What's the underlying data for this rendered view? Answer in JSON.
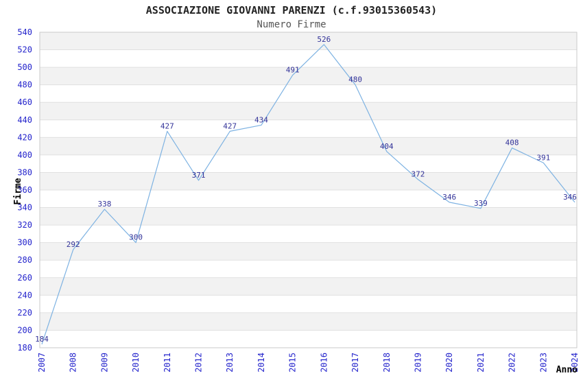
{
  "chart_data": {
    "type": "line",
    "title": "ASSOCIAZIONE GIOVANNI PARENZI (c.f.93015360543)",
    "subtitle": "Numero Firme",
    "xlabel": "Anno",
    "ylabel": "Firme",
    "x": [
      "2007",
      "2008",
      "2009",
      "2010",
      "2011",
      "2012",
      "2013",
      "2014",
      "2015",
      "2016",
      "2017",
      "2018",
      "2019",
      "2020",
      "2021",
      "2022",
      "2023",
      "2024"
    ],
    "series": [
      {
        "name": "Numero Firme",
        "values": [
          184,
          292,
          338,
          300,
          427,
          371,
          427,
          434,
          491,
          526,
          480,
          404,
          372,
          346,
          339,
          408,
          391,
          346
        ]
      }
    ],
    "ylim": [
      180,
      540
    ],
    "ytick_step": 20,
    "grid": "alternating-horizontal-bands",
    "legend": "none",
    "point_markers": false,
    "data_labels": true,
    "colors": {
      "line": "#7db2e2",
      "tick_label": "#2424cc",
      "data_label": "#333399",
      "band": "#f2f2f2",
      "gridline": "#e0e0e0",
      "plot_border": "#c9c9c9",
      "title": "#222222",
      "subtitle": "#555555",
      "axis_title": "#000000",
      "background": "#ffffff"
    }
  }
}
